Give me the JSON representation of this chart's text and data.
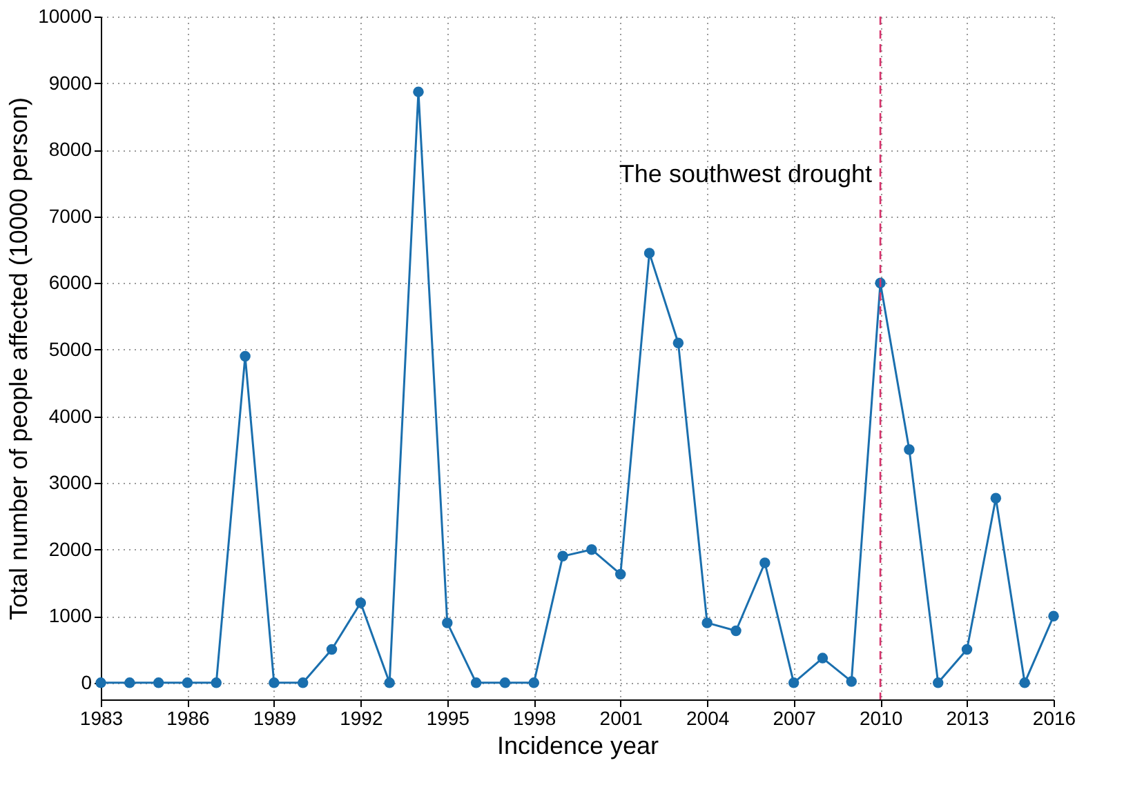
{
  "chart_data": {
    "type": "line",
    "xlabel": "Incidence year",
    "ylabel": "Total number of people affected (10000 person)",
    "x": [
      1983,
      1984,
      1985,
      1986,
      1987,
      1988,
      1989,
      1990,
      1991,
      1992,
      1993,
      1994,
      1995,
      1996,
      1997,
      1998,
      1999,
      2000,
      2001,
      2002,
      2003,
      2004,
      2005,
      2006,
      2007,
      2008,
      2009,
      2010,
      2011,
      2012,
      2013,
      2014,
      2015,
      2016
    ],
    "series": [
      {
        "color": "#1a6fae",
        "values": [
          0,
          0,
          0,
          0,
          0,
          4900,
          0,
          0,
          500,
          1200,
          0,
          8870,
          900,
          0,
          0,
          0,
          1900,
          2000,
          1630,
          6450,
          5100,
          900,
          780,
          1800,
          0,
          370,
          20,
          6000,
          3500,
          0,
          500,
          2770,
          0,
          1000
        ]
      }
    ],
    "xlim": [
      1983,
      2016
    ],
    "xticks": [
      1983,
      1986,
      1989,
      1992,
      1995,
      1998,
      2001,
      2004,
      2007,
      2010,
      2013,
      2016
    ],
    "ylim": [
      -250,
      10000
    ],
    "yticks": [
      0,
      1000,
      2000,
      3000,
      4000,
      5000,
      6000,
      7000,
      8000,
      9000,
      10000
    ],
    "grid": true,
    "marker": "circle",
    "line_style": "solid",
    "ref_lines": [
      {
        "axis": "x",
        "value": 2010,
        "label": "The southwest drought",
        "color": "#d6336c",
        "line_style": "dashed"
      }
    ]
  }
}
